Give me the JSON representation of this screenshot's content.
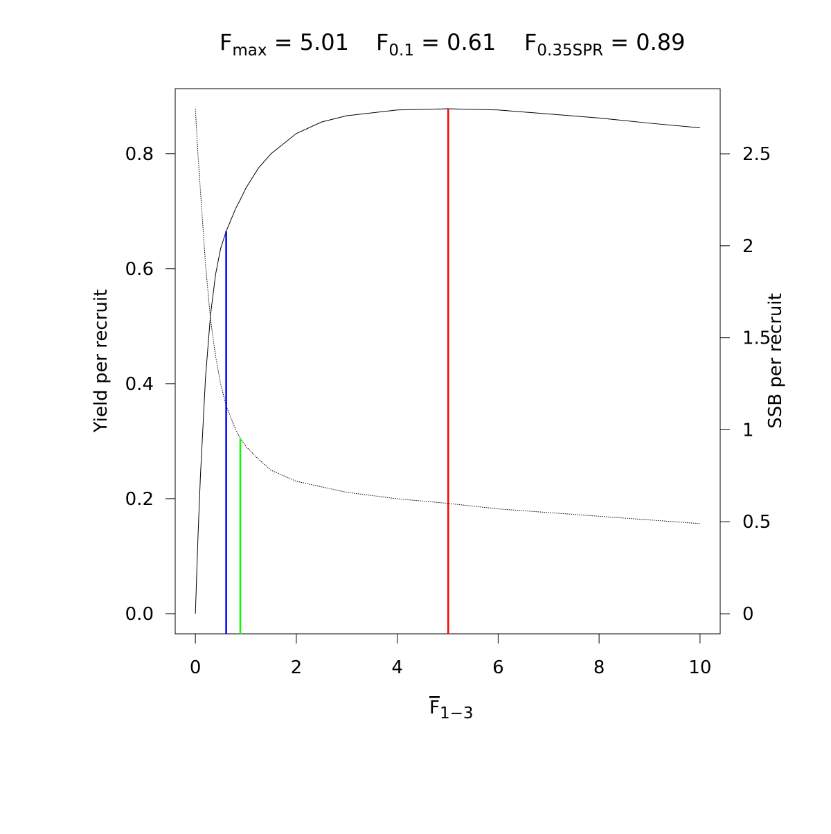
{
  "chart_data": {
    "type": "line",
    "title": [
      {
        "base": "F",
        "sub": "max",
        "rest": " = 5.01"
      },
      {
        "base": "F",
        "sub": "0.1",
        "rest": " = 0.61"
      },
      {
        "base": "F",
        "sub": "0.35SPR",
        "rest": " = 0.89"
      }
    ],
    "xlabel": {
      "base": "F",
      "sub": "1−3"
    },
    "ylabel": "Yield per recruit",
    "y2label": "SSB per recruit",
    "x": [
      0,
      0.05,
      0.1,
      0.2,
      0.3,
      0.4,
      0.5,
      0.61,
      0.8,
      0.89,
      1.0,
      1.25,
      1.5,
      2,
      2.5,
      3,
      4,
      5,
      6,
      7,
      8,
      9,
      10
    ],
    "series": [
      {
        "color": "#000000",
        "style": "solid",
        "axis": "y",
        "values": [
          0,
          0.13,
          0.24,
          0.41,
          0.52,
          0.59,
          0.635,
          0.665,
          0.705,
          0.72,
          0.74,
          0.775,
          0.8,
          0.835,
          0.855,
          0.866,
          0.876,
          0.878,
          0.876,
          0.869,
          0.862,
          0.853,
          0.845
        ]
      },
      {
        "color": "#000000",
        "style": "dotted",
        "axis": "y2",
        "values": [
          2.745,
          2.5,
          2.3,
          1.9,
          1.6,
          1.4,
          1.25,
          1.13,
          1.0,
          0.955,
          0.91,
          0.84,
          0.78,
          0.72,
          0.69,
          0.66,
          0.625,
          0.6,
          0.57,
          0.55,
          0.53,
          0.51,
          0.49
        ]
      }
    ],
    "reference_lines": [
      {
        "x": 5.01,
        "y": 0.878,
        "axis": "y",
        "color": "#ff0000"
      },
      {
        "x": 0.61,
        "y": 0.665,
        "axis": "y",
        "color": "#0000ff"
      },
      {
        "x": 0.89,
        "y": 0.955,
        "axis": "y2",
        "color": "#00ff00"
      }
    ],
    "xlim": [
      -0.4,
      10.4
    ],
    "xticks": [
      0,
      2,
      4,
      6,
      8,
      10
    ],
    "ylim": [
      -0.035,
      0.913
    ],
    "yticks": [
      {
        "value": 0,
        "label": "0.0"
      },
      0.2,
      0.4,
      0.6,
      0.8
    ],
    "y2lim": [
      -0.109,
      2.854
    ],
    "y2ticks": [
      0,
      0.5,
      1,
      1.5,
      2,
      2.5
    ]
  }
}
